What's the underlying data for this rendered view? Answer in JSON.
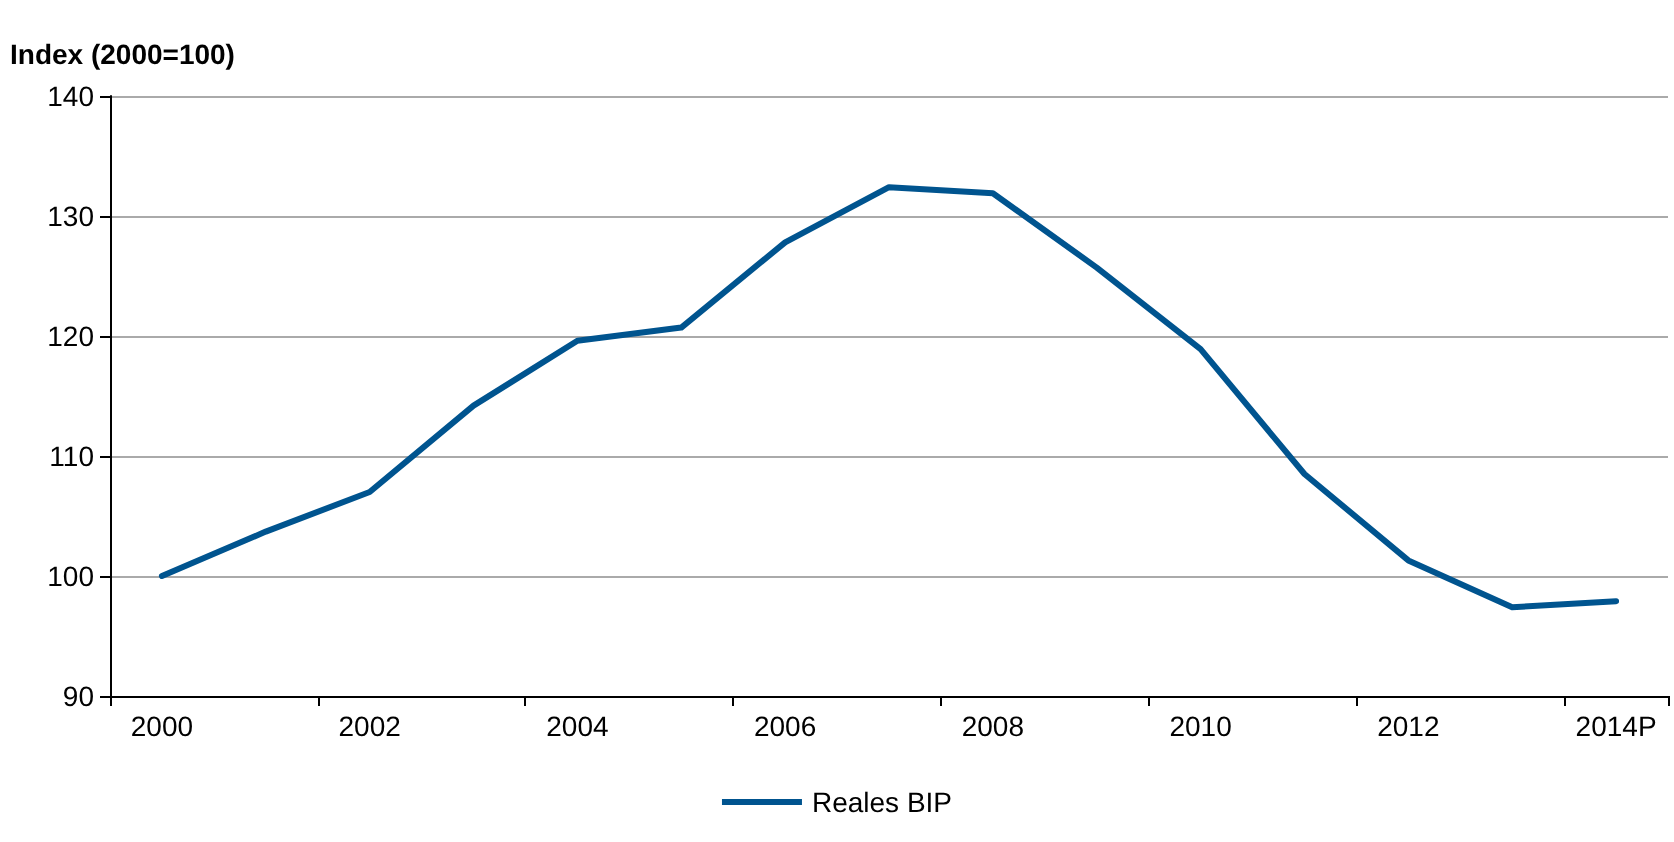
{
  "chart_data": {
    "type": "line",
    "ylabel": "Index (2000=100)",
    "categories": [
      "2000",
      null,
      "2002",
      null,
      "2004",
      null,
      "2006",
      null,
      "2008",
      null,
      "2010",
      null,
      "2012",
      null,
      "2014P"
    ],
    "series": [
      {
        "name": "Reales BIP",
        "color": "#00548f",
        "values": [
          100,
          103.7,
          107,
          114.2,
          119.6,
          120.7,
          127.8,
          132.4,
          131.9,
          125.7,
          118.9,
          108.5,
          101.3,
          97.4,
          97.9
        ]
      }
    ],
    "ylim": [
      90,
      140
    ],
    "yticks": [
      90,
      100,
      110,
      120,
      130,
      140
    ],
    "grid": "y",
    "legend": "bottom",
    "marker": "none",
    "line_style": "solid"
  }
}
